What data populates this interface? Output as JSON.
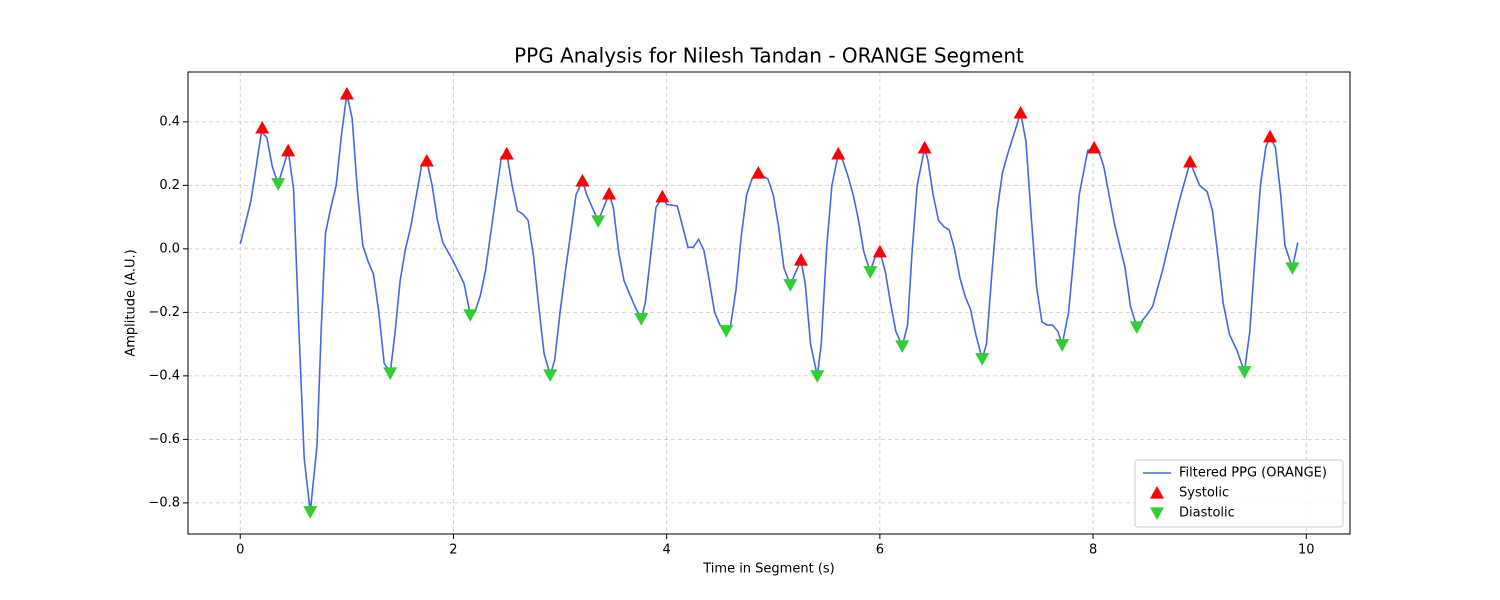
{
  "chart_data": {
    "type": "line",
    "title": "PPG Analysis for Nilesh Tandan - ORANGE Segment",
    "xlabel": "Time in Segment (s)",
    "ylabel": "Amplitude (A.U.)",
    "xlim": [
      -0.49,
      10.41
    ],
    "ylim": [
      -0.898,
      0.557
    ],
    "xticks": [
      0,
      2,
      4,
      6,
      8,
      10
    ],
    "yticks": [
      {
        "value": -0.8,
        "label": "−0.8"
      },
      {
        "value": -0.6,
        "label": "−0.6"
      },
      {
        "value": -0.4,
        "label": "−0.4"
      },
      {
        "value": -0.2,
        "label": "−0.2"
      },
      {
        "value": 0,
        "label": "0.0"
      },
      0.2,
      0.4
    ],
    "grid": true,
    "legend": "lower right",
    "series": [
      {
        "name": "Filtered PPG (ORANGE)",
        "color": "#4169e1",
        "style": "line",
        "x": [
          0,
          0.1,
          0.2,
          0.25,
          0.3,
          0.356,
          0.45,
          0.5,
          0.55,
          0.6,
          0.657,
          0.72,
          0.76,
          0.8,
          0.85,
          0.9,
          0.95,
          1.0,
          1.05,
          1.1,
          1.15,
          1.2,
          1.25,
          1.3,
          1.35,
          1.407,
          1.45,
          1.5,
          1.55,
          1.6,
          1.7,
          1.75,
          1.8,
          1.85,
          1.9,
          2.0,
          2.1,
          2.158,
          2.2,
          2.25,
          2.3,
          2.35,
          2.45,
          2.5,
          2.55,
          2.6,
          2.65,
          2.7,
          2.75,
          2.8,
          2.85,
          2.908,
          2.95,
          3.0,
          3.05,
          3.1,
          3.15,
          3.21,
          3.25,
          3.358,
          3.46,
          3.5,
          3.55,
          3.6,
          3.7,
          3.762,
          3.8,
          3.85,
          3.9,
          3.96,
          4.0,
          4.1,
          4.2,
          4.25,
          4.3,
          4.35,
          4.4,
          4.45,
          4.5,
          4.559,
          4.6,
          4.65,
          4.7,
          4.75,
          4.8,
          4.86,
          4.95,
          5.0,
          5.05,
          5.1,
          5.16,
          5.26,
          5.3,
          5.35,
          5.413,
          5.45,
          5.5,
          5.55,
          5.61,
          5.65,
          5.7,
          5.75,
          5.8,
          5.85,
          5.91,
          5.95,
          6.0,
          6.05,
          6.1,
          6.15,
          6.21,
          6.26,
          6.3,
          6.35,
          6.42,
          6.45,
          6.5,
          6.55,
          6.6,
          6.65,
          6.7,
          6.75,
          6.8,
          6.85,
          6.9,
          6.96,
          7.0,
          7.05,
          7.1,
          7.15,
          7.2,
          7.32,
          7.37,
          7.42,
          7.47,
          7.52,
          7.57,
          7.62,
          7.67,
          7.71,
          7.77,
          7.82,
          7.87,
          7.95,
          8.01,
          8.06,
          8.1,
          8.15,
          8.2,
          8.3,
          8.35,
          8.41,
          8.5,
          8.56,
          8.6,
          8.65,
          8.7,
          8.8,
          8.91,
          8.95,
          9.0,
          9.07,
          9.12,
          9.17,
          9.22,
          9.28,
          9.35,
          9.42,
          9.47,
          9.52,
          9.57,
          9.62,
          9.66,
          9.71,
          9.76,
          9.8,
          9.87,
          9.92
        ],
        "values": [
          0.015,
          0.15,
          0.37,
          0.35,
          0.26,
          0.205,
          0.309,
          0.19,
          -0.25,
          -0.66,
          -0.828,
          -0.62,
          -0.25,
          0.05,
          0.13,
          0.2,
          0.36,
          0.488,
          0.41,
          0.18,
          0.01,
          -0.04,
          -0.08,
          -0.2,
          -0.36,
          -0.391,
          -0.27,
          -0.1,
          0.0,
          0.07,
          0.26,
          0.277,
          0.2,
          0.09,
          0.02,
          -0.04,
          -0.11,
          -0.208,
          -0.2,
          -0.15,
          -0.07,
          0.05,
          0.29,
          0.299,
          0.2,
          0.12,
          0.11,
          0.09,
          -0.02,
          -0.18,
          -0.33,
          -0.397,
          -0.35,
          -0.2,
          -0.07,
          0.05,
          0.17,
          0.214,
          0.17,
          0.088,
          0.173,
          0.13,
          -0.01,
          -0.1,
          -0.18,
          -0.22,
          -0.17,
          -0.02,
          0.13,
          0.164,
          0.14,
          0.135,
          0.005,
          0.005,
          0.03,
          -0.005,
          -0.1,
          -0.2,
          -0.24,
          -0.258,
          -0.24,
          -0.13,
          0.04,
          0.17,
          0.22,
          0.239,
          0.22,
          0.17,
          0.07,
          -0.06,
          -0.113,
          -0.035,
          -0.11,
          -0.3,
          -0.4,
          -0.3,
          0.0,
          0.2,
          0.299,
          0.28,
          0.23,
          0.17,
          0.09,
          -0.01,
          -0.072,
          -0.03,
          -0.009,
          -0.07,
          -0.17,
          -0.26,
          -0.306,
          -0.24,
          -0.02,
          0.2,
          0.318,
          0.28,
          0.17,
          0.09,
          0.07,
          0.06,
          0.0,
          -0.09,
          -0.15,
          -0.19,
          -0.27,
          -0.346,
          -0.3,
          -0.08,
          0.12,
          0.24,
          0.3,
          0.428,
          0.34,
          0.1,
          -0.12,
          -0.23,
          -0.24,
          -0.24,
          -0.26,
          -0.302,
          -0.2,
          -0.02,
          0.17,
          0.31,
          0.318,
          0.3,
          0.26,
          0.17,
          0.08,
          -0.06,
          -0.18,
          -0.246,
          -0.21,
          -0.18,
          -0.13,
          -0.07,
          0.0,
          0.14,
          0.274,
          0.24,
          0.2,
          0.18,
          0.12,
          -0.02,
          -0.17,
          -0.27,
          -0.32,
          -0.387,
          -0.26,
          -0.02,
          0.2,
          0.32,
          0.353,
          0.32,
          0.17,
          0.01,
          -0.06,
          0.02
        ]
      },
      {
        "name": "Systolic",
        "color": "#ff0000",
        "style": "triangle-up",
        "x": [
          0.206,
          0.45,
          1.0,
          1.75,
          2.5,
          3.21,
          3.46,
          3.96,
          4.86,
          5.26,
          5.61,
          6.0,
          6.42,
          7.32,
          8.01,
          8.91,
          9.66
        ],
        "values": [
          0.381,
          0.309,
          0.488,
          0.277,
          0.299,
          0.214,
          0.173,
          0.164,
          0.239,
          -0.035,
          0.299,
          -0.009,
          0.318,
          0.428,
          0.318,
          0.274,
          0.353
        ]
      },
      {
        "name": "Diastolic",
        "color": "#32cd32",
        "style": "triangle-down",
        "x": [
          0.356,
          0.657,
          1.407,
          2.158,
          2.908,
          3.358,
          3.762,
          4.559,
          5.16,
          5.413,
          5.91,
          6.21,
          6.96,
          7.71,
          8.41,
          9.42,
          9.87
        ],
        "values": [
          0.205,
          -0.828,
          -0.391,
          -0.208,
          -0.397,
          0.088,
          -0.22,
          -0.258,
          -0.113,
          -0.4,
          -0.072,
          -0.306,
          -0.346,
          -0.302,
          -0.246,
          -0.387,
          -0.06
        ]
      }
    ]
  }
}
